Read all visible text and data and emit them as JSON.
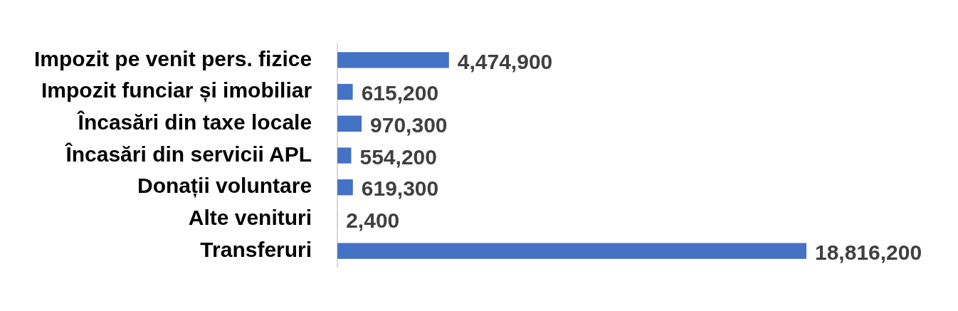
{
  "chart_data": {
    "type": "bar",
    "orientation": "horizontal",
    "categories": [
      "Impozit pe venit pers. fizice",
      "Impozit funciar și imobiliar",
      "Încasări din taxe locale",
      "Încasări din servicii APL",
      "Donații voluntare",
      "Alte venituri",
      "Transferuri"
    ],
    "values": [
      4474900,
      615200,
      970300,
      554200,
      619300,
      2400,
      18816200
    ],
    "value_labels": [
      "4,474,900",
      "615,200",
      "970,300",
      "554,200",
      "619,300",
      "2,400",
      "18,816,200"
    ],
    "color": "#4472c4"
  }
}
